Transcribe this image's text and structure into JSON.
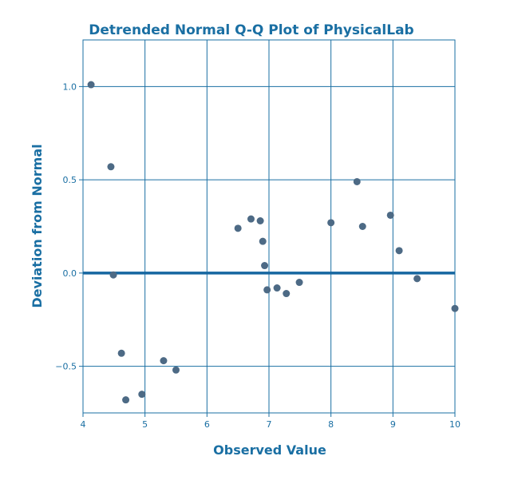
{
  "colors": {
    "accent": "#1a6fa3",
    "title": "#1a6fa3",
    "grid": "#1a6fa3",
    "zero_line": "#1566a0",
    "point": "#4d6a85",
    "tick_text": "#1a6fa3"
  },
  "chart_data": {
    "type": "scatter",
    "title": "Detrended Normal Q-Q Plot of PhysicalLab",
    "xlabel": "Observed Value",
    "ylabel": "Deviation from Normal",
    "xlim": [
      4,
      10
    ],
    "ylim": [
      -0.75,
      1.25
    ],
    "x_ticks": [
      4,
      5,
      6,
      7,
      8,
      9,
      10
    ],
    "x_tick_labels": [
      "4",
      "5",
      "6",
      "7",
      "8",
      "9",
      "10"
    ],
    "y_ticks": [
      1.0,
      0.5,
      0.0,
      -0.5
    ],
    "y_tick_labels": [
      "1.0",
      "0.5",
      "0.0",
      "−0.5"
    ],
    "grid": true,
    "reference_line_y": 0,
    "points": [
      {
        "x": 4.13,
        "y": 1.01
      },
      {
        "x": 4.45,
        "y": 0.57
      },
      {
        "x": 4.49,
        "y": -0.01
      },
      {
        "x": 4.62,
        "y": -0.43
      },
      {
        "x": 4.69,
        "y": -0.68
      },
      {
        "x": 4.95,
        "y": -0.65
      },
      {
        "x": 5.3,
        "y": -0.47
      },
      {
        "x": 5.5,
        "y": -0.52
      },
      {
        "x": 6.5,
        "y": 0.24
      },
      {
        "x": 6.71,
        "y": 0.29
      },
      {
        "x": 6.86,
        "y": 0.28
      },
      {
        "x": 6.9,
        "y": 0.17
      },
      {
        "x": 6.93,
        "y": 0.04
      },
      {
        "x": 6.97,
        "y": -0.09
      },
      {
        "x": 7.13,
        "y": -0.08
      },
      {
        "x": 7.28,
        "y": -0.11
      },
      {
        "x": 7.49,
        "y": -0.05
      },
      {
        "x": 8.0,
        "y": 0.27
      },
      {
        "x": 8.42,
        "y": 0.49
      },
      {
        "x": 8.51,
        "y": 0.25
      },
      {
        "x": 8.96,
        "y": 0.31
      },
      {
        "x": 9.1,
        "y": 0.12
      },
      {
        "x": 9.39,
        "y": -0.03
      },
      {
        "x": 10.0,
        "y": -0.19
      }
    ]
  }
}
